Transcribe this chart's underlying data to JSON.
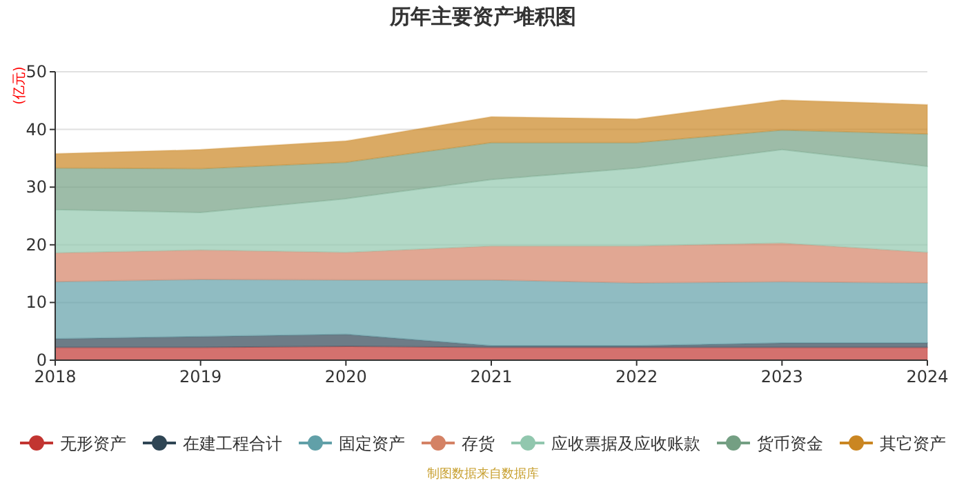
{
  "chart_data": {
    "type": "area",
    "title": "历年主要资产堆积图",
    "ylabel": "(亿元)",
    "stacked": true,
    "x": [
      2018,
      2019,
      2020,
      2021,
      2022,
      2023,
      2024
    ],
    "xlim": [
      2018,
      2024
    ],
    "xticks": [
      2018,
      2019,
      2020,
      2021,
      2022,
      2023,
      2024
    ],
    "ylim": [
      0,
      50
    ],
    "yticks": [
      0,
      10,
      20,
      30,
      40,
      50
    ],
    "grid": "y",
    "legend": "bottom",
    "series": [
      {
        "name": "无形资产",
        "color": "#c23531",
        "values": [
          2.2,
          2.2,
          2.4,
          2.2,
          2.2,
          2.2,
          2.2
        ]
      },
      {
        "name": "在建工程合计",
        "color": "#2f4554",
        "values": [
          1.5,
          1.9,
          2.1,
          0.3,
          0.3,
          0.8,
          0.8
        ]
      },
      {
        "name": "固定资产",
        "color": "#61a0a8",
        "values": [
          9.9,
          9.9,
          9.4,
          11.4,
          10.9,
          10.6,
          10.4
        ]
      },
      {
        "name": "存货",
        "color": "#d48265",
        "values": [
          5.0,
          5.1,
          4.8,
          5.9,
          6.4,
          6.7,
          5.3
        ]
      },
      {
        "name": "应收票据及应收账款",
        "color": "#91c7ae",
        "values": [
          7.5,
          6.5,
          9.3,
          11.5,
          13.5,
          16.2,
          14.9
        ]
      },
      {
        "name": "货币资金",
        "color": "#749f83",
        "values": [
          7.2,
          7.6,
          6.3,
          6.4,
          4.4,
          3.4,
          5.6
        ]
      },
      {
        "name": "其它资产",
        "color": "#ca8622",
        "values": [
          2.5,
          3.3,
          3.7,
          4.5,
          4.1,
          5.2,
          5.1
        ]
      }
    ],
    "annotations": [
      "制图数据来自数据库"
    ]
  }
}
